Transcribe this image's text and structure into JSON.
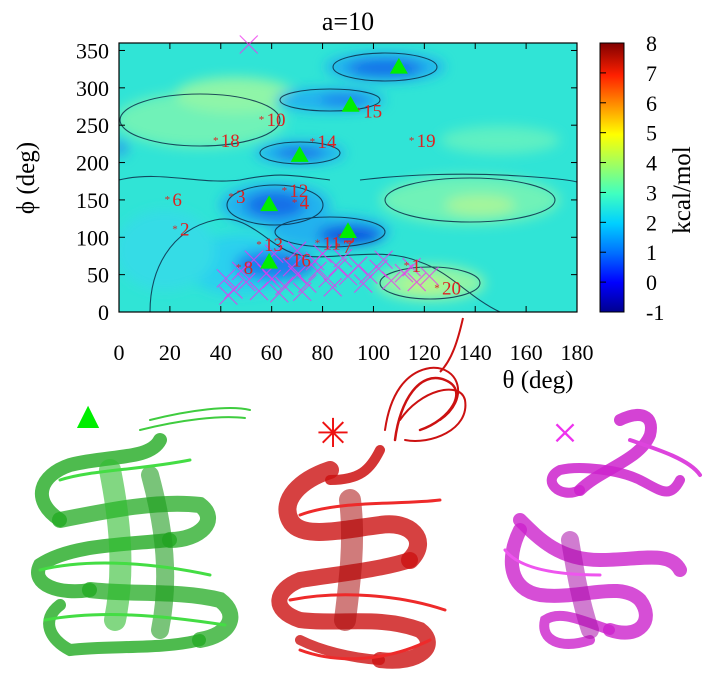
{
  "chart_data": {
    "type": "heatmap",
    "title": "a=10",
    "xlabel": "θ (deg)",
    "ylabel": "ϕ (deg)",
    "colorbar_label": "kcal/mol",
    "xlim": [
      0,
      180
    ],
    "ylim": [
      0,
      360
    ],
    "x_ticks": [
      "0",
      "20",
      "40",
      "60",
      "80",
      "100",
      "120",
      "140",
      "160",
      "180"
    ],
    "y_ticks": [
      "0",
      "50",
      "100",
      "150",
      "200",
      "250",
      "300",
      "350"
    ],
    "colorbar_ticks": [
      "-1",
      "0",
      "1",
      "2",
      "3",
      "4",
      "5",
      "6",
      "7",
      "8"
    ],
    "colorbar_range": [
      -1,
      8
    ],
    "colorscale": [
      "#00008f",
      "#0000ff",
      "#0070ff",
      "#00d0ff",
      "#40ffc0",
      "#a0ff60",
      "#ffff00",
      "#ff9000",
      "#ff2000",
      "#800000"
    ],
    "minima": [
      {
        "theta": 110,
        "phi": 328
      },
      {
        "theta": 91,
        "phi": 277
      },
      {
        "theta": 71,
        "phi": 210
      },
      {
        "theta": 59,
        "phi": 144
      },
      {
        "theta": 90,
        "phi": 108
      },
      {
        "theta": 59,
        "phi": 67
      }
    ],
    "structures": [
      {
        "label": "1",
        "theta": 113,
        "phi": 63
      },
      {
        "label": "2",
        "theta": 22,
        "phi": 112
      },
      {
        "label": "3",
        "theta": 44,
        "phi": 155
      },
      {
        "label": "4",
        "theta": 69,
        "phi": 147
      },
      {
        "label": "5",
        "theta": 87,
        "phi": 101
      },
      {
        "label": "6",
        "theta": 19,
        "phi": 151
      },
      {
        "label": "7",
        "theta": 86,
        "phi": 88
      },
      {
        "label": "8",
        "theta": 47,
        "phi": 60
      },
      {
        "label": "10",
        "theta": 56,
        "phi": 258
      },
      {
        "label": "11",
        "theta": 78,
        "phi": 93
      },
      {
        "label": "12",
        "theta": 65,
        "phi": 163
      },
      {
        "label": "13",
        "theta": 55,
        "phi": 91
      },
      {
        "label": "14",
        "theta": 76,
        "phi": 229
      },
      {
        "label": "15",
        "theta": 94,
        "phi": 270
      },
      {
        "label": "16",
        "theta": 66,
        "phi": 70
      },
      {
        "label": "18",
        "theta": 38,
        "phi": 230
      },
      {
        "label": "19",
        "theta": 115,
        "phi": 230
      },
      {
        "label": "20",
        "theta": 125,
        "phi": 33
      }
    ],
    "misfolded": [
      {
        "theta": 51,
        "phi": 358
      },
      {
        "theta": 42,
        "phi": 45
      },
      {
        "theta": 45,
        "phi": 30
      },
      {
        "theta": 50,
        "phi": 40
      },
      {
        "theta": 55,
        "phi": 28
      },
      {
        "theta": 60,
        "phi": 44
      },
      {
        "theta": 65,
        "phi": 35
      },
      {
        "theta": 70,
        "phi": 50
      },
      {
        "theta": 74,
        "phi": 38
      },
      {
        "theta": 78,
        "phi": 55
      },
      {
        "theta": 82,
        "phi": 45
      },
      {
        "theta": 86,
        "phi": 60
      },
      {
        "theta": 90,
        "phi": 48
      },
      {
        "theta": 94,
        "phi": 62
      },
      {
        "theta": 98,
        "phi": 50
      },
      {
        "theta": 102,
        "phi": 58
      },
      {
        "theta": 107,
        "phi": 42
      },
      {
        "theta": 112,
        "phi": 52
      },
      {
        "theta": 117,
        "phi": 40
      },
      {
        "theta": 122,
        "phi": 48
      },
      {
        "theta": 48,
        "phi": 55
      },
      {
        "theta": 58,
        "phi": 52
      },
      {
        "theta": 68,
        "phi": 60
      },
      {
        "theta": 77,
        "phi": 68
      },
      {
        "theta": 63,
        "phi": 25
      },
      {
        "theta": 72,
        "phi": 27
      },
      {
        "theta": 84,
        "phi": 33
      },
      {
        "theta": 96,
        "phi": 38
      },
      {
        "theta": 88,
        "phi": 72
      },
      {
        "theta": 104,
        "phi": 70
      },
      {
        "theta": 53,
        "phi": 70
      },
      {
        "theta": 61,
        "phi": 78
      },
      {
        "theta": 70,
        "phi": 82
      },
      {
        "theta": 80,
        "phi": 78
      },
      {
        "theta": 115,
        "phi": 60
      },
      {
        "theta": 43,
        "phi": 22
      }
    ]
  },
  "legend": {
    "folded_symbol": "▲",
    "unfolded_symbol": "✳",
    "misfolded_symbol": "×"
  },
  "colors": {
    "folded": "#00ee00",
    "unfolded": "#ee1111",
    "misfolded": "#ee33ee",
    "label": "#dd2222"
  }
}
